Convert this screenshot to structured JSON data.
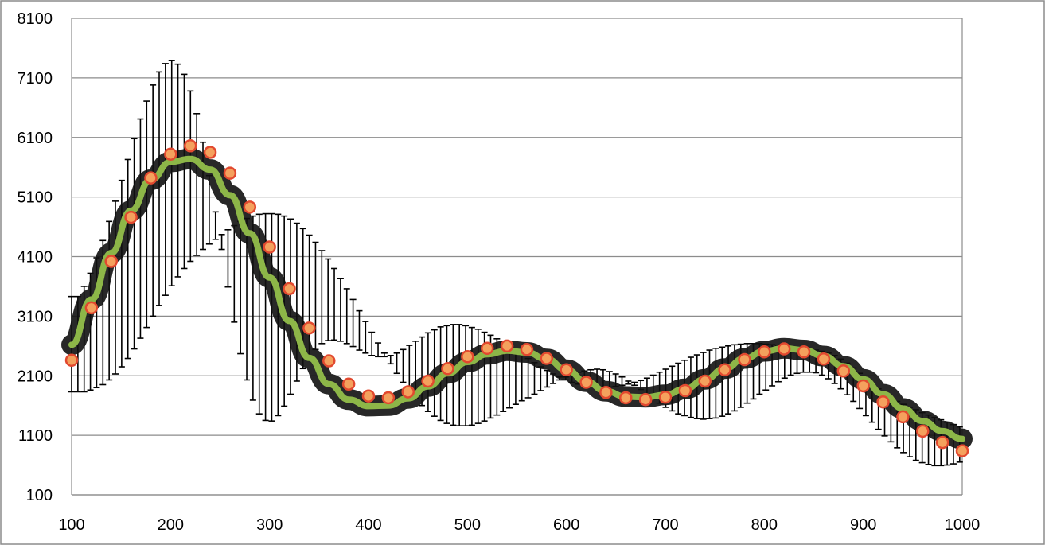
{
  "chart_data": {
    "type": "scatter",
    "title": "",
    "xlabel": "",
    "ylabel": "",
    "xlim": [
      100,
      1000
    ],
    "ylim": [
      100,
      8100
    ],
    "x_ticks": [
      "100",
      "200",
      "300",
      "400",
      "500",
      "600",
      "700",
      "800",
      "900",
      "1000"
    ],
    "y_ticks": [
      "100",
      "1100",
      "2100",
      "3100",
      "4100",
      "5100",
      "6100",
      "7100",
      "8100"
    ],
    "grid": "horizontal",
    "legend": "none",
    "colors": {
      "fit_line": "#8DB648",
      "marker_fill": "#F4A15D",
      "marker_edge": "#E2492F",
      "data_points": "#000000",
      "grid": "#8C8C8C",
      "frame": "#8C8C8C"
    },
    "series": [
      {
        "kind": "markers",
        "x": [
          100,
          120,
          140,
          160,
          180,
          200,
          220,
          240,
          260,
          280,
          300,
          320,
          340,
          360,
          380,
          400,
          420,
          440,
          460,
          480,
          500,
          520,
          540,
          560,
          580,
          600,
          620,
          640,
          660,
          680,
          700,
          720,
          740,
          760,
          780,
          800,
          820,
          840,
          860,
          880,
          900,
          920,
          940,
          960,
          980,
          1000
        ],
        "y": [
          2360,
          3240,
          4020,
          4760,
          5420,
          5820,
          5960,
          5850,
          5500,
          4930,
          4260,
          3560,
          2900,
          2350,
          1960,
          1760,
          1730,
          1830,
          2010,
          2220,
          2420,
          2560,
          2600,
          2540,
          2390,
          2200,
          1990,
          1820,
          1730,
          1700,
          1740,
          1850,
          2010,
          2200,
          2370,
          2500,
          2550,
          2500,
          2380,
          2180,
          1930,
          1660,
          1410,
          1170,
          980,
          840
        ]
      },
      {
        "kind": "fit",
        "x": [
          100,
          120,
          140,
          160,
          180,
          200,
          220,
          240,
          260,
          280,
          300,
          320,
          340,
          360,
          380,
          400,
          420,
          440,
          460,
          480,
          500,
          520,
          540,
          560,
          580,
          600,
          620,
          640,
          660,
          680,
          700,
          720,
          740,
          760,
          780,
          800,
          820,
          840,
          860,
          880,
          900,
          920,
          940,
          960,
          980,
          1000
        ],
        "y": [
          2620,
          3380,
          4160,
          4870,
          5390,
          5690,
          5740,
          5560,
          5130,
          4490,
          3750,
          3020,
          2400,
          1960,
          1700,
          1590,
          1600,
          1720,
          1920,
          2140,
          2330,
          2460,
          2520,
          2490,
          2380,
          2200,
          2000,
          1840,
          1750,
          1740,
          1780,
          1880,
          2040,
          2220,
          2390,
          2510,
          2560,
          2530,
          2430,
          2260,
          2040,
          1790,
          1550,
          1340,
          1170,
          1040
        ]
      }
    ],
    "error_bars": {
      "x_step": 2,
      "y_min": [
        1830,
        1830,
        1830,
        1860,
        1900,
        1950,
        2030,
        2130,
        2250,
        2390,
        2550,
        2730,
        2910,
        3100,
        3280,
        3450,
        3610,
        3760,
        3900,
        4020,
        4120,
        4220,
        4310,
        4390,
        4470,
        4550,
        4620,
        4690,
        4740,
        4780,
        4810,
        4820,
        4820,
        4810,
        4780,
        4730,
        4660,
        4570,
        4460,
        4340,
        4200,
        4060,
        3900,
        3730,
        3560,
        3380,
        3190,
        3010,
        2830,
        2650,
        2480,
        2300,
        2140,
        1990,
        1850,
        1720,
        1600,
        1500,
        1420,
        1350,
        1300,
        1270,
        1260,
        1260,
        1270,
        1300,
        1340,
        1390,
        1440,
        1500,
        1560,
        1620,
        1680,
        1730,
        1790,
        1850,
        1910,
        1970,
        2030,
        2080,
        2130,
        2160,
        2180,
        2200,
        2210,
        2200,
        2170,
        2130,
        2080,
        2010,
        1940,
        1870,
        1790,
        1710,
        1640,
        1570,
        1510,
        1460,
        1430,
        1400,
        1380,
        1370,
        1380,
        1390,
        1420,
        1460,
        1510,
        1570,
        1640,
        1710,
        1790,
        1860,
        1930,
        2000,
        2060,
        2110,
        2140,
        2160,
        2160,
        2150,
        2110,
        2050,
        1970,
        1880,
        1780,
        1670,
        1550,
        1430,
        1320,
        1200,
        1090,
        990,
        890,
        810,
        740,
        680,
        640,
        610,
        590,
        590,
        600,
        620,
        650,
        690,
        740,
        790
      ],
      "y_max": [
        3430,
        3430,
        3600,
        3820,
        4080,
        4370,
        4690,
        5030,
        5380,
        5730,
        6080,
        6410,
        6710,
        6980,
        7200,
        7340,
        7390,
        7330,
        7160,
        6880,
        6500,
        6020,
        5460,
        4850,
        4220,
        3590,
        3000,
        2470,
        2030,
        1690,
        1460,
        1350,
        1340,
        1430,
        1590,
        1790,
        2010,
        2220,
        2400,
        2540,
        2640,
        2690,
        2700,
        2680,
        2640,
        2590,
        2530,
        2480,
        2440,
        2420,
        2420,
        2440,
        2480,
        2540,
        2610,
        2680,
        2750,
        2820,
        2870,
        2920,
        2940,
        2960,
        2960,
        2940,
        2910,
        2880,
        2830,
        2780,
        2720,
        2660,
        2590,
        2520,
        2450,
        2390,
        2320,
        2250,
        2190,
        2130,
        2080,
        2030,
        1990,
        1960,
        1930,
        1920,
        1910,
        1900,
        1910,
        1920,
        1940,
        1960,
        1990,
        2020,
        2060,
        2110,
        2160,
        2210,
        2260,
        2310,
        2360,
        2410,
        2450,
        2490,
        2530,
        2560,
        2580,
        2600,
        2620,
        2630,
        2640,
        2640,
        2640,
        2630,
        2620,
        2600,
        2590,
        2570,
        2560,
        2550,
        2540,
        2530,
        2510,
        2480,
        2440,
        2380,
        2310,
        2230,
        2140,
        2050,
        1960,
        1880,
        1800,
        1730,
        1670,
        1620,
        1570,
        1530,
        1480,
        1440,
        1400,
        1360,
        1320,
        1280,
        1240,
        1200,
        1170,
        1140,
        1110,
        1090
      ]
    }
  }
}
